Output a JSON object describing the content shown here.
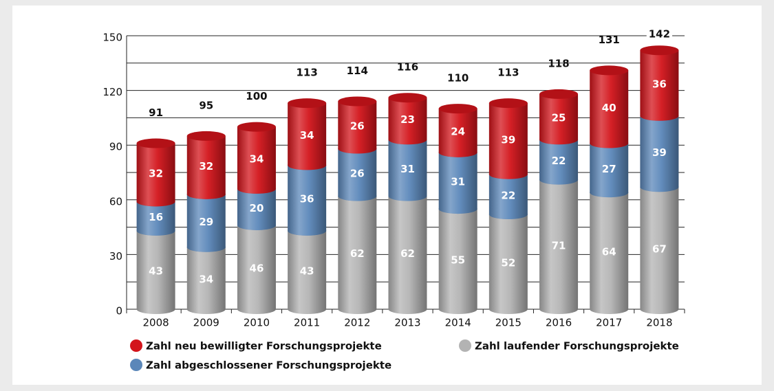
{
  "chart_data": {
    "type": "stacked_bar",
    "categories": [
      "2008",
      "2009",
      "2010",
      "2011",
      "2012",
      "2013",
      "2014",
      "2015",
      "2016",
      "2017",
      "2018"
    ],
    "series": [
      {
        "name": "Zahl laufender Forschungsprojekte",
        "color": "#b3b3b3",
        "values": [
          43,
          34,
          46,
          43,
          62,
          62,
          55,
          52,
          71,
          64,
          67
        ]
      },
      {
        "name": "Zahl abgeschlossener Forschungsprojekte",
        "color": "#5b87b9",
        "values": [
          16,
          29,
          20,
          36,
          26,
          31,
          31,
          22,
          22,
          27,
          39
        ]
      },
      {
        "name": "Zahl neu bewilligter Forschungsprojekte",
        "color": "#d3141b",
        "values": [
          32,
          32,
          34,
          34,
          26,
          23,
          24,
          39,
          25,
          40,
          36
        ]
      }
    ],
    "totals": [
      91,
      95,
      100,
      113,
      114,
      116,
      110,
      113,
      118,
      131,
      142
    ],
    "ylim": [
      0,
      150
    ],
    "yticks": [
      0,
      30,
      60,
      90,
      120,
      150
    ],
    "minor_yticks": [
      15,
      45,
      75,
      105,
      135
    ],
    "grid": true
  }
}
